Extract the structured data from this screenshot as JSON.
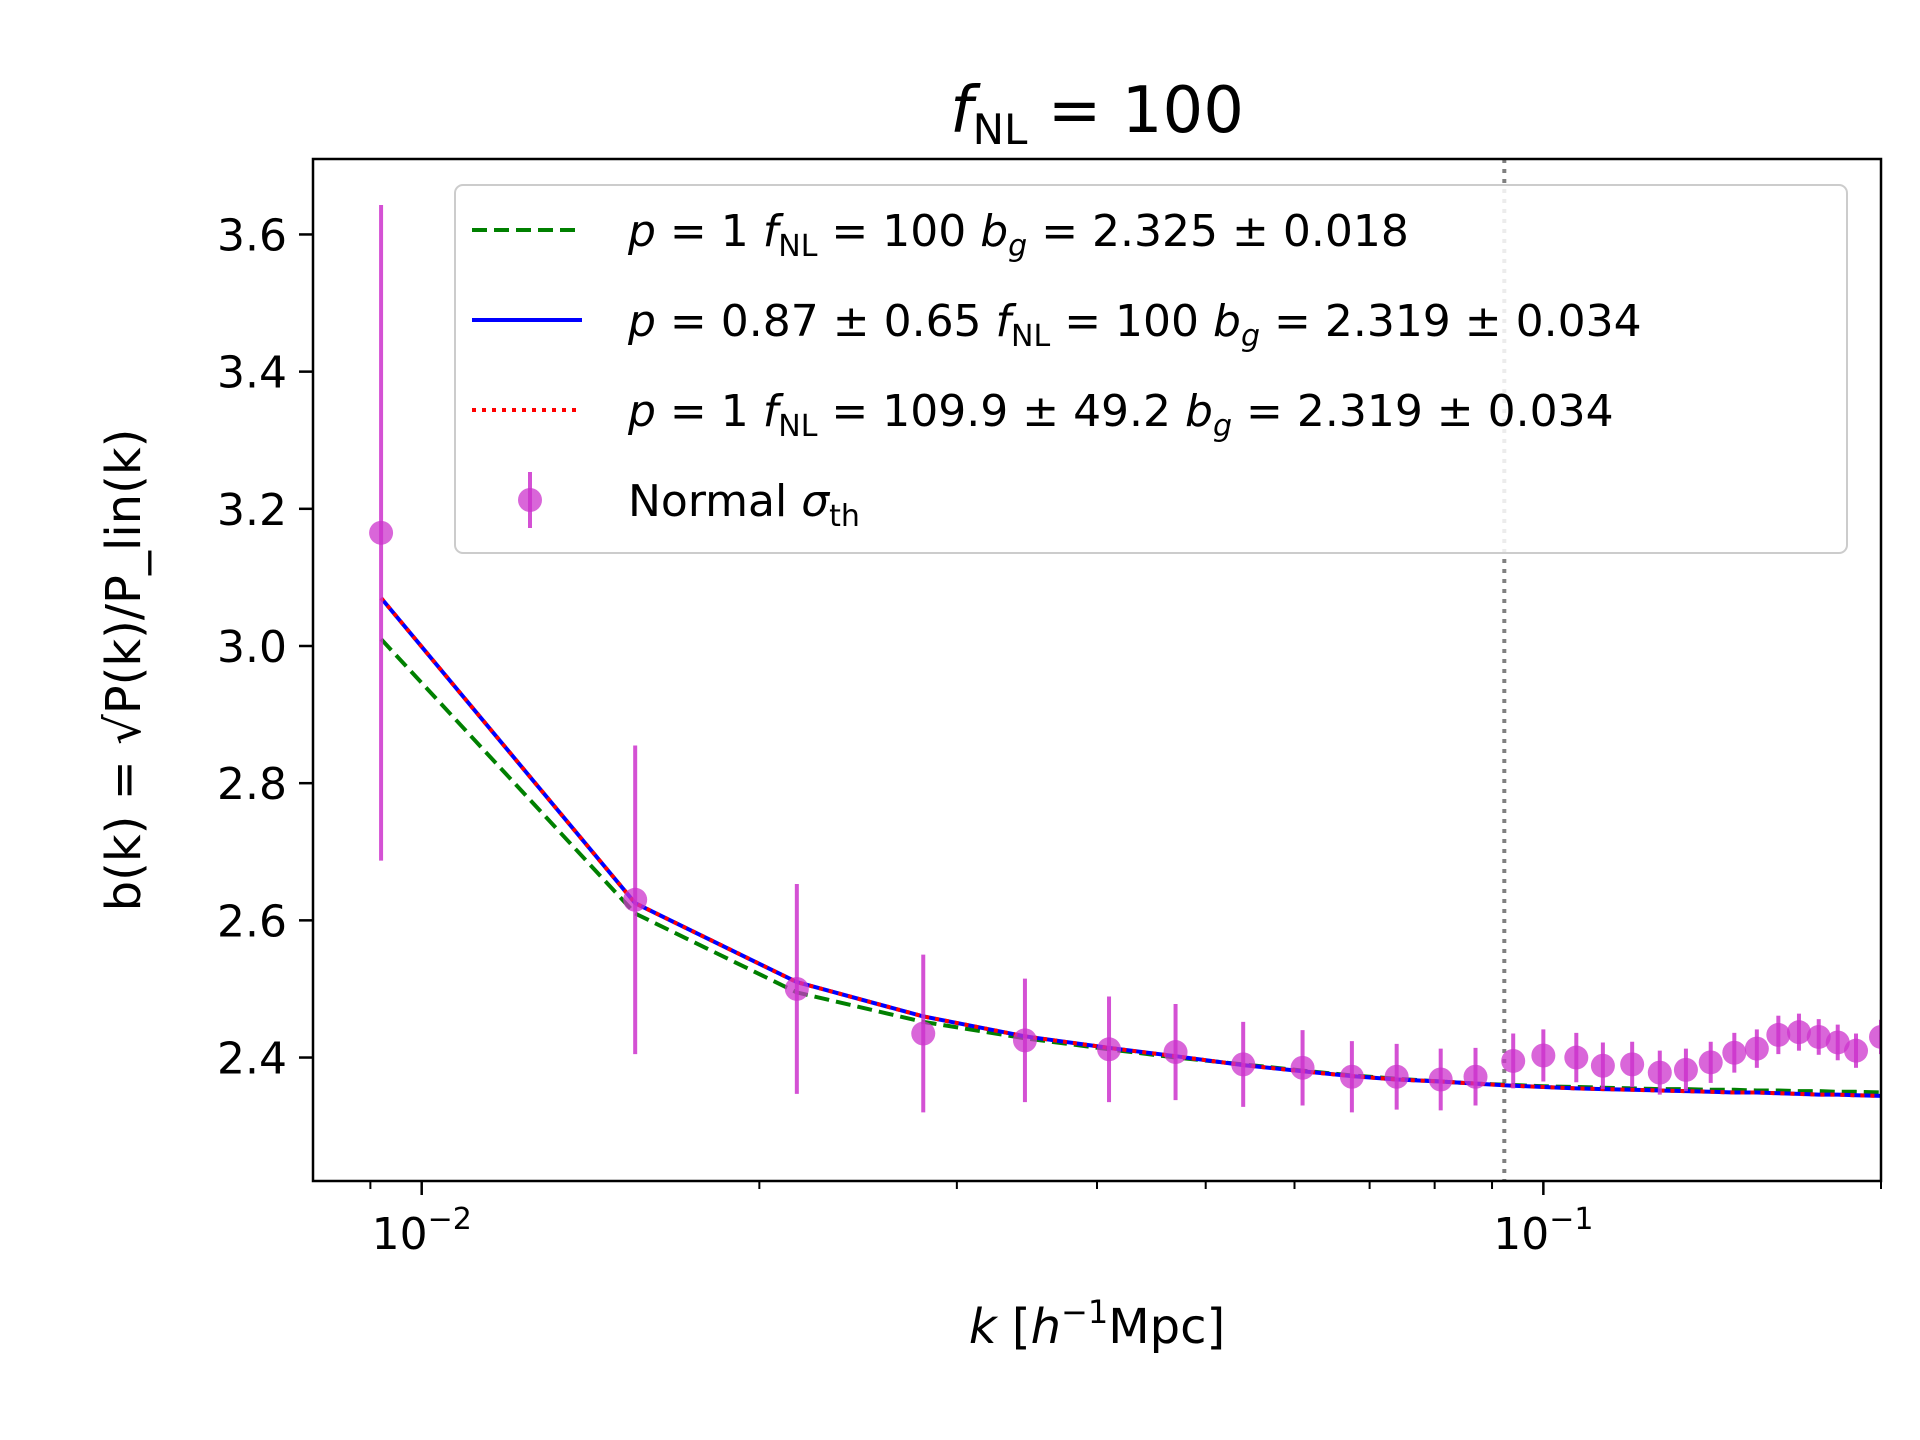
{
  "chart_data": {
    "type": "line",
    "title_parts": {
      "symbol": "f",
      "subscript": "NL",
      "value": " = 100"
    },
    "xlabel_parts": {
      "symbol": "k",
      "unit_open": " [",
      "h": "h",
      "exp": "−1",
      "unit_close": "Mpc]"
    },
    "ylabel": "b(k) = √P(k)/P_lin(k)",
    "x_scale": "log",
    "xlim": [
      0.008,
      0.2
    ],
    "ylim": [
      2.22,
      3.71
    ],
    "y_ticks": [
      2.4,
      2.6,
      2.8,
      3.0,
      3.2,
      3.4,
      3.6
    ],
    "y_tick_labels": [
      "2.4",
      "2.6",
      "2.8",
      "3.0",
      "3.2",
      "3.4",
      "3.6"
    ],
    "x_major_ticks": [
      0.01,
      0.1
    ],
    "x_major_tick_labels": [
      {
        "base": "10",
        "exp": "−2"
      },
      {
        "base": "10",
        "exp": "−1"
      }
    ],
    "x_minor_ticks": [
      0.009,
      0.02,
      0.03,
      0.04,
      0.05,
      0.06,
      0.07,
      0.08,
      0.09,
      0.2
    ],
    "vline": {
      "x": 0.0923,
      "style": "dotted",
      "color": "#808080"
    },
    "legend_position": "upper-right",
    "series": [
      {
        "name": "p = 1 fNL = 100 bg = 2.325 ± 0.018",
        "legend": {
          "a": "p",
          "b": " = 1 ",
          "c": "f",
          "d": "NL",
          "e": " = 100 ",
          "f": "b",
          "g": "g",
          "h": " = 2.325 ± 0.018"
        },
        "color": "#008000",
        "style": "dashed",
        "x": [
          0.0092,
          0.0155,
          0.0216,
          0.028,
          0.0345,
          0.041,
          0.047,
          0.054,
          0.061,
          0.0675,
          0.074,
          0.081,
          0.087,
          0.094,
          0.1,
          0.107,
          0.113,
          0.12,
          0.127,
          0.134,
          0.141,
          0.148,
          0.155,
          0.162,
          0.169,
          0.176,
          0.183,
          0.19,
          0.2
        ],
        "y": [
          3.01,
          2.61,
          2.495,
          2.452,
          2.428,
          2.412,
          2.4,
          2.39,
          2.381,
          2.374,
          2.369,
          2.365,
          2.362,
          2.36,
          2.358,
          2.357,
          2.356,
          2.355,
          2.354,
          2.354,
          2.353,
          2.353,
          2.352,
          2.352,
          2.351,
          2.351,
          2.35,
          2.35,
          2.349
        ]
      },
      {
        "name": "p = 0.87 ± 0.65 fNL = 100 bg = 2.319 ± 0.034",
        "legend": {
          "a": "p",
          "b": " = 0.87 ± 0.65 ",
          "c": "f",
          "d": "NL",
          "e": " = 100 ",
          "f": "b",
          "g": "g",
          "h": " = 2.319 ± 0.034"
        },
        "color": "#0000ff",
        "style": "solid",
        "x": [
          0.0092,
          0.0155,
          0.0216,
          0.028,
          0.0345,
          0.041,
          0.047,
          0.054,
          0.061,
          0.0675,
          0.074,
          0.081,
          0.087,
          0.094,
          0.1,
          0.107,
          0.113,
          0.12,
          0.127,
          0.134,
          0.141,
          0.148,
          0.155,
          0.162,
          0.169,
          0.176,
          0.183,
          0.19,
          0.2
        ],
        "y": [
          3.07,
          2.625,
          2.51,
          2.46,
          2.431,
          2.414,
          2.402,
          2.389,
          2.38,
          2.373,
          2.368,
          2.365,
          2.362,
          2.359,
          2.357,
          2.355,
          2.354,
          2.353,
          2.352,
          2.351,
          2.35,
          2.349,
          2.349,
          2.348,
          2.347,
          2.346,
          2.346,
          2.345,
          2.344
        ]
      },
      {
        "name": "p = 1 fNL = 109.9 ± 49.2 bg = 2.319 ± 0.034",
        "legend": {
          "a": "p",
          "b": " = 1 ",
          "c": "f",
          "d": "NL",
          "e": " = 109.9 ± 49.2 ",
          "f": "b",
          "g": "g",
          "h": " = 2.319 ± 0.034"
        },
        "color": "#ff0000",
        "style": "dotted",
        "x": [
          0.0092,
          0.0155,
          0.0216,
          0.028,
          0.0345,
          0.041,
          0.047,
          0.054,
          0.061,
          0.0675,
          0.074,
          0.081,
          0.087,
          0.094,
          0.1,
          0.107,
          0.113,
          0.12,
          0.127,
          0.134,
          0.141,
          0.148,
          0.155,
          0.162,
          0.169,
          0.176,
          0.183,
          0.19,
          0.2
        ],
        "y": [
          3.07,
          2.625,
          2.51,
          2.46,
          2.431,
          2.414,
          2.402,
          2.389,
          2.38,
          2.373,
          2.368,
          2.365,
          2.362,
          2.359,
          2.357,
          2.355,
          2.354,
          2.353,
          2.352,
          2.351,
          2.35,
          2.349,
          2.349,
          2.348,
          2.347,
          2.346,
          2.346,
          2.345,
          2.344
        ]
      }
    ],
    "errorbar_series": {
      "name": "Normal σth",
      "legend": {
        "a": "Normal ",
        "b": "σ",
        "c": "th"
      },
      "color": "#cc33cc",
      "x": [
        0.0092,
        0.0155,
        0.0216,
        0.028,
        0.0345,
        0.041,
        0.047,
        0.054,
        0.061,
        0.0675,
        0.074,
        0.081,
        0.087,
        0.094,
        0.1,
        0.107,
        0.113,
        0.12,
        0.127,
        0.134,
        0.141,
        0.148,
        0.155,
        0.162,
        0.169,
        0.176,
        0.183,
        0.19,
        0.2
      ],
      "y": [
        3.165,
        2.63,
        2.5,
        2.435,
        2.425,
        2.412,
        2.408,
        2.39,
        2.385,
        2.372,
        2.372,
        2.368,
        2.372,
        2.395,
        2.403,
        2.4,
        2.388,
        2.39,
        2.378,
        2.382,
        2.393,
        2.407,
        2.413,
        2.433,
        2.437,
        2.43,
        2.422,
        2.41,
        2.43
      ],
      "yerr": [
        0.478,
        0.225,
        0.153,
        0.115,
        0.09,
        0.077,
        0.07,
        0.062,
        0.055,
        0.052,
        0.048,
        0.045,
        0.042,
        0.04,
        0.038,
        0.036,
        0.034,
        0.033,
        0.032,
        0.031,
        0.03,
        0.029,
        0.028,
        0.028,
        0.027,
        0.026,
        0.026,
        0.025,
        0.025
      ]
    }
  }
}
